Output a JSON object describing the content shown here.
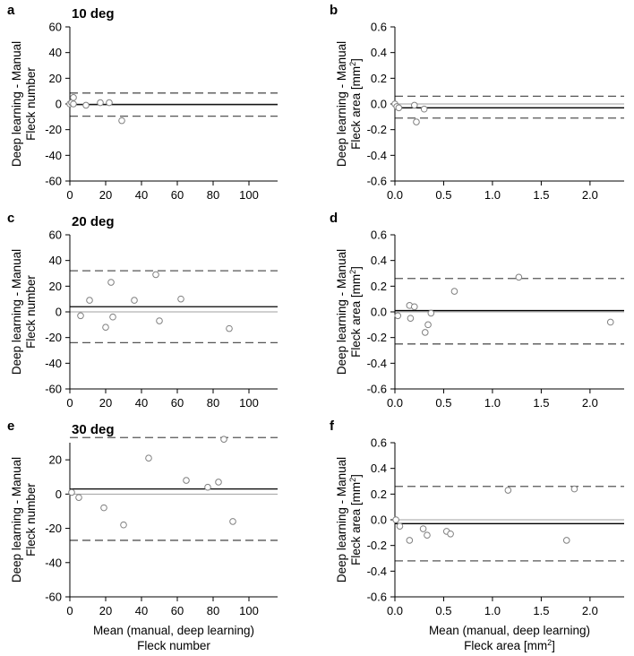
{
  "chart_data": [
    {
      "panel": "a",
      "title": "10 deg",
      "type": "scatter",
      "ylabel": [
        "Deep learning - Manual",
        "Fleck number"
      ],
      "xlabel": [],
      "xlim": [
        0,
        116
      ],
      "ylim": [
        -60,
        60
      ],
      "xticks": [
        0,
        20,
        40,
        60,
        80,
        100
      ],
      "xtick_labels": [
        "0",
        "20",
        "40",
        "60",
        "80",
        "100"
      ],
      "yticks": [
        -60,
        -40,
        -20,
        0,
        20,
        40,
        60
      ],
      "ytick_labels": [
        "-60",
        "-40",
        "-20",
        "0",
        "20",
        "40",
        "60"
      ],
      "zero_line": 0,
      "mean_difference": -0.5,
      "limits_of_agreement": [
        8.5,
        -9.5
      ],
      "points": [
        {
          "x": 0,
          "y": 0
        },
        {
          "x": 1,
          "y": 1
        },
        {
          "x": 2,
          "y": 5
        },
        {
          "x": 2,
          "y": 0
        },
        {
          "x": 9,
          "y": -1
        },
        {
          "x": 17,
          "y": 1
        },
        {
          "x": 22,
          "y": 1
        },
        {
          "x": 29,
          "y": -13
        }
      ]
    },
    {
      "panel": "b",
      "title": "",
      "type": "scatter",
      "ylabel": [
        "Deep learning - Manual",
        "Fleck area [mm",
        "2",
        "]"
      ],
      "xlabel": [],
      "xlim": [
        0,
        2.35
      ],
      "ylim": [
        -0.6,
        0.6
      ],
      "xticks": [
        0,
        0.5,
        1,
        1.5,
        2
      ],
      "xtick_labels": [
        "0.0",
        "0.5",
        "1.0",
        "1.5",
        "2.0"
      ],
      "yticks": [
        -0.6,
        -0.4,
        -0.2,
        0,
        0.2,
        0.4,
        0.6
      ],
      "ytick_labels": [
        "-0.6",
        "-0.4",
        "-0.2",
        "0.0",
        "0.2",
        "0.4",
        "0.6"
      ],
      "zero_line": 0,
      "mean_difference": -0.03,
      "limits_of_agreement": [
        0.06,
        -0.11
      ],
      "points": [
        {
          "x": 0.0,
          "y": 0.0
        },
        {
          "x": 0.02,
          "y": -0.02
        },
        {
          "x": 0.04,
          "y": -0.03
        },
        {
          "x": 0.2,
          "y": -0.01
        },
        {
          "x": 0.22,
          "y": -0.14
        },
        {
          "x": 0.3,
          "y": -0.04
        }
      ]
    },
    {
      "panel": "c",
      "title": "20 deg",
      "type": "scatter",
      "ylabel": [
        "Deep learning - Manual",
        "Fleck number"
      ],
      "xlabel": [],
      "xlim": [
        0,
        116
      ],
      "ylim": [
        -60,
        60
      ],
      "xticks": [
        0,
        20,
        40,
        60,
        80,
        100
      ],
      "xtick_labels": [
        "0",
        "20",
        "40",
        "60",
        "80",
        "100"
      ],
      "yticks": [
        -60,
        -40,
        -20,
        0,
        20,
        40,
        60
      ],
      "ytick_labels": [
        "-60",
        "-40",
        "-20",
        "0",
        "20",
        "40",
        "60"
      ],
      "zero_line": 0,
      "mean_difference": 4,
      "limits_of_agreement": [
        32,
        -24
      ],
      "points": [
        {
          "x": 6,
          "y": -3
        },
        {
          "x": 11,
          "y": 9
        },
        {
          "x": 20,
          "y": -12
        },
        {
          "x": 23,
          "y": 23
        },
        {
          "x": 24,
          "y": -4
        },
        {
          "x": 36,
          "y": 9
        },
        {
          "x": 48,
          "y": 29
        },
        {
          "x": 50,
          "y": -7
        },
        {
          "x": 62,
          "y": 10
        },
        {
          "x": 89,
          "y": -13
        }
      ]
    },
    {
      "panel": "d",
      "title": "",
      "type": "scatter",
      "ylabel": [
        "Deep learning - Manual",
        "Fleck area [mm",
        "2",
        "]"
      ],
      "xlabel": [],
      "xlim": [
        0,
        2.35
      ],
      "ylim": [
        -0.6,
        0.6
      ],
      "xticks": [
        0,
        0.5,
        1,
        1.5,
        2
      ],
      "xtick_labels": [
        "0.0",
        "0.5",
        "1.0",
        "1.5",
        "2.0"
      ],
      "yticks": [
        -0.6,
        -0.4,
        -0.2,
        0,
        0.2,
        0.4,
        0.6
      ],
      "ytick_labels": [
        "-0.6",
        "-0.4",
        "-0.2",
        "0.0",
        "0.2",
        "0.4",
        "0.6"
      ],
      "zero_line": 0,
      "mean_difference": 0.01,
      "limits_of_agreement": [
        0.26,
        -0.25
      ],
      "points": [
        {
          "x": 0.03,
          "y": -0.03
        },
        {
          "x": 0.15,
          "y": 0.05
        },
        {
          "x": 0.16,
          "y": -0.05
        },
        {
          "x": 0.2,
          "y": 0.04
        },
        {
          "x": 0.31,
          "y": -0.16
        },
        {
          "x": 0.34,
          "y": -0.1
        },
        {
          "x": 0.37,
          "y": -0.01
        },
        {
          "x": 0.61,
          "y": 0.16
        },
        {
          "x": 1.27,
          "y": 0.27
        },
        {
          "x": 2.21,
          "y": -0.08
        }
      ]
    },
    {
      "panel": "e",
      "title": "30 deg",
      "type": "scatter",
      "ylabel": [
        "Deep learning - Manual",
        "Fleck number"
      ],
      "xlabel": [
        "Mean (manual, deep learning)",
        "Fleck number"
      ],
      "xlim": [
        0,
        116
      ],
      "ylim": [
        -60,
        30
      ],
      "xticks": [
        0,
        20,
        40,
        60,
        80,
        100
      ],
      "xtick_labels": [
        "0",
        "20",
        "40",
        "60",
        "80",
        "100"
      ],
      "yticks": [
        -60,
        -40,
        -20,
        0,
        20
      ],
      "ytick_labels": [
        "-60",
        "-40",
        "-20",
        "0",
        "20"
      ],
      "zero_line": 0,
      "mean_difference": 3,
      "limits_of_agreement": [
        33,
        -27
      ],
      "points": [
        {
          "x": 1,
          "y": 1
        },
        {
          "x": 5,
          "y": -2
        },
        {
          "x": 19,
          "y": -8
        },
        {
          "x": 30,
          "y": -18
        },
        {
          "x": 44,
          "y": 21
        },
        {
          "x": 65,
          "y": 8
        },
        {
          "x": 77,
          "y": 4
        },
        {
          "x": 83,
          "y": 7
        },
        {
          "x": 86,
          "y": 32
        },
        {
          "x": 91,
          "y": -16
        }
      ]
    },
    {
      "panel": "f",
      "title": "",
      "type": "scatter",
      "ylabel": [
        "Deep learning - Manual",
        "Fleck area [mm",
        "2",
        "]"
      ],
      "xlabel": [
        "Mean (manual, deep learning)",
        "Fleck area [mm",
        "2",
        "]"
      ],
      "xlim": [
        0,
        2.35
      ],
      "ylim": [
        -0.6,
        0.6
      ],
      "xticks": [
        0,
        0.5,
        1,
        1.5,
        2
      ],
      "xtick_labels": [
        "0.0",
        "0.5",
        "1.0",
        "1.5",
        "2.0"
      ],
      "yticks": [
        -0.6,
        -0.4,
        -0.2,
        0,
        0.2,
        0.4,
        0.6
      ],
      "ytick_labels": [
        "-0.6",
        "-0.4",
        "-0.2",
        "0.0",
        "0.2",
        "0.4",
        "0.6"
      ],
      "zero_line": 0,
      "mean_difference": -0.03,
      "limits_of_agreement": [
        0.26,
        -0.32
      ],
      "points": [
        {
          "x": 0.01,
          "y": 0.0
        },
        {
          "x": 0.05,
          "y": -0.05
        },
        {
          "x": 0.15,
          "y": -0.16
        },
        {
          "x": 0.29,
          "y": -0.07
        },
        {
          "x": 0.33,
          "y": -0.12
        },
        {
          "x": 0.53,
          "y": -0.09
        },
        {
          "x": 0.57,
          "y": -0.11
        },
        {
          "x": 1.16,
          "y": 0.23
        },
        {
          "x": 1.76,
          "y": -0.16
        },
        {
          "x": 1.84,
          "y": 0.24
        }
      ]
    }
  ],
  "colors": {
    "axis": "#000000",
    "mean_line": "#000000",
    "zero_line": "#a0a0a0",
    "loa_line": "#555555",
    "point_fill": "#ffffff",
    "point_stroke": "#808080"
  }
}
